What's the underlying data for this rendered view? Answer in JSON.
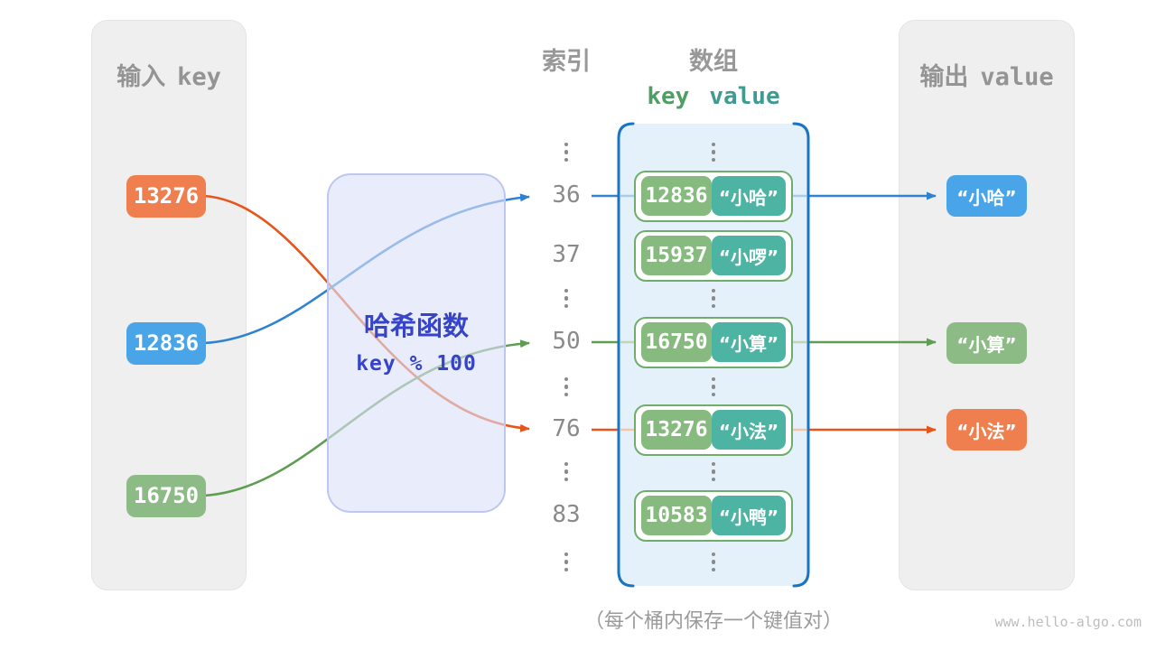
{
  "input_panel": {
    "title_zh": "输入",
    "title_en": "key",
    "keys": [
      {
        "text": "13276",
        "color": "orange"
      },
      {
        "text": "12836",
        "color": "blue"
      },
      {
        "text": "16750",
        "color": "green"
      }
    ]
  },
  "hash_box": {
    "title": "哈希函数",
    "formula": "key % 100"
  },
  "columns": {
    "index_title": "索引",
    "array_title": "数组",
    "header_key": "key",
    "header_value": "value"
  },
  "index_values": [
    "36",
    "37",
    "50",
    "76",
    "83"
  ],
  "pairs": [
    {
      "key": "12836",
      "value": "“小哈”"
    },
    {
      "key": "15937",
      "value": "“小啰”"
    },
    {
      "key": "16750",
      "value": "“小算”"
    },
    {
      "key": "13276",
      "value": "“小法”"
    },
    {
      "key": "10583",
      "value": "“小鸭”"
    }
  ],
  "output_panel": {
    "title_zh": "输出",
    "title_en": "value",
    "values": [
      {
        "text": "“小哈”",
        "color": "blue"
      },
      {
        "text": "“小算”",
        "color": "green"
      },
      {
        "text": "“小法”",
        "color": "orange"
      }
    ]
  },
  "caption": "（每个桶内保存一个键值对）",
  "watermark": "www.hello-algo.com",
  "colors": {
    "orange": "#EF7F4E",
    "blue": "#49A4E8",
    "green": "#8CBB85",
    "key_cell": "#86BA7E",
    "value_cell": "#4DB4A4",
    "pair_border": "#6FAE6A",
    "line_blue": "#2E82D0",
    "line_green": "#5F9E52",
    "line_orange": "#E8551A",
    "faded_blue": "#A9CCEC",
    "faded_green": "#BFD8B4",
    "faded_orange": "#F5C3A9",
    "hash_text": "#3544C9",
    "bracket_blue": "#1A74C4",
    "header_key_green": "#4F9E63",
    "header_value_teal": "#3E9B90"
  }
}
